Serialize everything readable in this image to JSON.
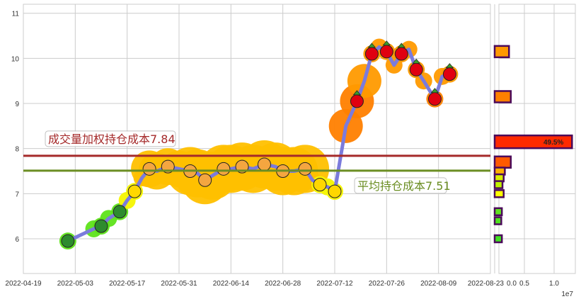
{
  "chart_data": [
    {
      "type": "line",
      "x_ticks": [
        "2022-04-19",
        "2022-05-03",
        "2022-05-17",
        "2022-05-31",
        "2022-06-14",
        "2022-06-28",
        "2022-07-12",
        "2022-07-26",
        "2022-08-09",
        "2022-08-23"
      ],
      "y_ticks": [
        6,
        7,
        8,
        9,
        10,
        11
      ],
      "xlim": [
        "2022-04-19",
        "2022-08-23"
      ],
      "ylim": [
        5.23,
        11.2
      ],
      "grid": true,
      "series": [
        {
          "color": "#7b7bdc",
          "points": [
            [
              "2022-05-01",
              5.95
            ],
            [
              "2022-05-08",
              6.22
            ],
            [
              "2022-05-10",
              6.28
            ],
            [
              "2022-05-12",
              6.45
            ],
            [
              "2022-05-15",
              6.6
            ],
            [
              "2022-05-17",
              6.85
            ],
            [
              "2022-05-19",
              7.05
            ],
            [
              "2022-05-21",
              7.35
            ],
            [
              "2022-05-23",
              7.55
            ],
            [
              "2022-05-25",
              7.5
            ],
            [
              "2022-05-28",
              7.6
            ],
            [
              "2022-05-31",
              7.55
            ],
            [
              "2022-06-03",
              7.5
            ],
            [
              "2022-06-05",
              7.45
            ],
            [
              "2022-06-07",
              7.3
            ],
            [
              "2022-06-09",
              7.4
            ],
            [
              "2022-06-12",
              7.55
            ],
            [
              "2022-06-14",
              7.55
            ],
            [
              "2022-06-17",
              7.6
            ],
            [
              "2022-06-20",
              7.55
            ],
            [
              "2022-06-23",
              7.65
            ],
            [
              "2022-06-26",
              7.6
            ],
            [
              "2022-06-28",
              7.5
            ],
            [
              "2022-07-01",
              7.5
            ],
            [
              "2022-07-04",
              7.55
            ],
            [
              "2022-07-06",
              7.3
            ],
            [
              "2022-07-08",
              7.2
            ],
            [
              "2022-07-10",
              7.15
            ],
            [
              "2022-07-12",
              7.05
            ],
            [
              "2022-07-15",
              8.5
            ],
            [
              "2022-07-18",
              9.05
            ],
            [
              "2022-07-20",
              9.5
            ],
            [
              "2022-07-22",
              10.1
            ],
            [
              "2022-07-24",
              10.25
            ],
            [
              "2022-07-26",
              10.15
            ],
            [
              "2022-07-28",
              9.85
            ],
            [
              "2022-07-30",
              10.1
            ],
            [
              "2022-08-01",
              10.2
            ],
            [
              "2022-08-03",
              9.75
            ],
            [
              "2022-08-05",
              9.5
            ],
            [
              "2022-08-08",
              9.1
            ],
            [
              "2022-08-10",
              9.6
            ],
            [
              "2022-08-12",
              9.65
            ]
          ]
        }
      ],
      "hlines": [
        {
          "value": 7.84,
          "label": "成交量加权持仓成本7.84",
          "color": "#a52a2a"
        },
        {
          "value": 7.51,
          "label": "平均持仓成本7.51",
          "color": "#6b8e23"
        }
      ]
    },
    {
      "type": "bar",
      "orientation": "horizontal",
      "x_ticks": [
        "0.0",
        "0.5",
        "1.0"
      ],
      "x_multiplier": "1e7",
      "xlim": [
        0,
        1.35
      ],
      "bars": [
        {
          "price": 10.15,
          "value": 0.17,
          "color": "#ff9900"
        },
        {
          "price": 9.15,
          "value": 0.2,
          "color": "#ff8000"
        },
        {
          "price": 8.15,
          "value": 1.23,
          "color": "#ff2a00",
          "label": "49.5%"
        },
        {
          "price": 7.7,
          "value": 0.2,
          "color": "#ff5a00"
        },
        {
          "price": 7.5,
          "value": 0.1,
          "color": "#ffb000"
        },
        {
          "price": 7.35,
          "value": 0.08,
          "color": "#d8f000"
        },
        {
          "price": 7.2,
          "value": 0.06,
          "color": "#c0f000"
        },
        {
          "price": 7.0,
          "value": 0.08,
          "color": "#ffff00"
        },
        {
          "price": 6.6,
          "value": 0.05,
          "color": "#60e020"
        },
        {
          "price": 6.4,
          "value": 0.04,
          "color": "#50e020"
        },
        {
          "price": 6.0,
          "value": 0.05,
          "color": "#40e020"
        }
      ]
    }
  ]
}
